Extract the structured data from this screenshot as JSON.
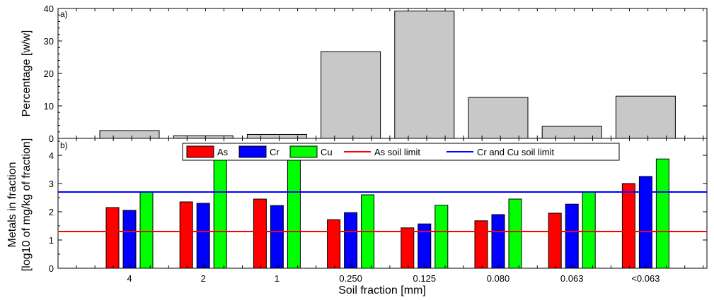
{
  "chart_data": [
    {
      "type": "bar",
      "panel_tag": "a)",
      "categories": [
        "4",
        "2",
        "1",
        "0.250",
        "0.125",
        "0.080",
        "0.063",
        "<0.063"
      ],
      "values": [
        2.4,
        0.8,
        1.2,
        26.7,
        39.2,
        12.6,
        3.7,
        13.0
      ],
      "ylabel": "Percentage [w/w]",
      "ylim": [
        0,
        40
      ],
      "yticks": [
        0,
        10,
        20,
        30,
        40
      ],
      "bar_color": "#c8c8c8",
      "grid": false
    },
    {
      "type": "bar",
      "panel_tag": "b)",
      "categories": [
        "4",
        "2",
        "1",
        "0.250",
        "0.125",
        "0.080",
        "0.063",
        "<0.063"
      ],
      "series": [
        {
          "name": "As",
          "color": "#ff0000",
          "values": [
            2.15,
            2.35,
            2.45,
            1.72,
            1.43,
            1.68,
            1.95,
            3.0
          ]
        },
        {
          "name": "Cr",
          "color": "#0000ff",
          "values": [
            2.05,
            2.3,
            2.22,
            1.97,
            1.57,
            1.9,
            2.27,
            3.25
          ]
        },
        {
          "name": "Cu",
          "color": "#00ff00",
          "values": [
            2.7,
            4.1,
            3.93,
            2.6,
            2.23,
            2.45,
            2.7,
            3.87
          ]
        }
      ],
      "lines": [
        {
          "name": "As soil limit",
          "color": "#ff0000",
          "y": 1.3
        },
        {
          "name": "Cr and Cu soil limit",
          "color": "#0000ff",
          "y": 2.7
        }
      ],
      "xlabel": "Soil fraction [mm]",
      "ylabel_line1": "Metals in fraction",
      "ylabel_line2": "[log10 of mg/kg of fraction]",
      "ylim": [
        0,
        4.6
      ],
      "yticks": [
        0,
        1,
        2,
        3,
        4
      ],
      "legend": "top-center",
      "grid": false
    }
  ]
}
